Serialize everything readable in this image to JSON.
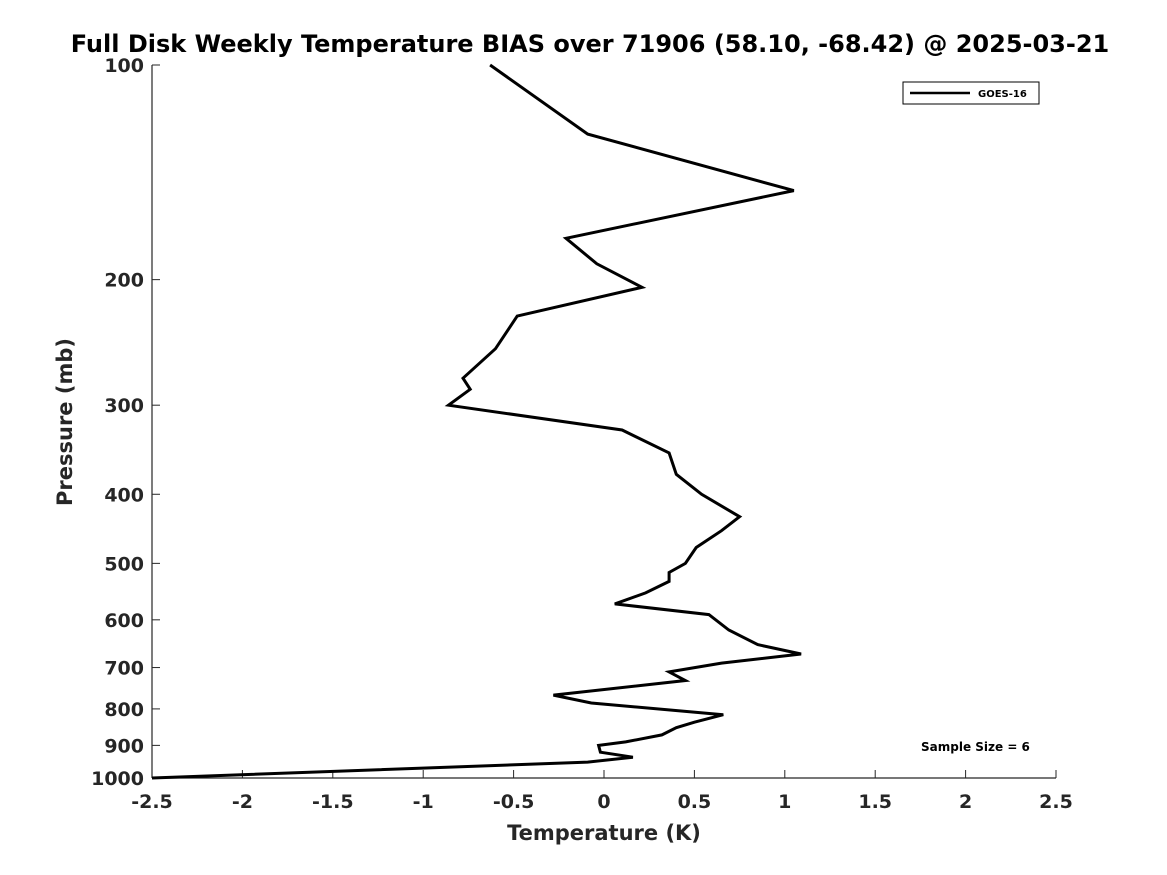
{
  "chart_data": {
    "type": "line",
    "title": "Full Disk Weekly Temperature BIAS over 71906 (58.10, -68.42) @ 2025-03-21",
    "xlabel": "Temperature (K)",
    "ylabel": "Pressure (mb)",
    "xlim": [
      -2.5,
      2.5
    ],
    "ylim": [
      100,
      1000
    ],
    "yscale": "log",
    "yreversed": true,
    "grid": false,
    "legend_position": "top-right",
    "x_ticks": [
      -2.5,
      -2,
      -1.5,
      -1,
      -0.5,
      0,
      0.5,
      1,
      1.5,
      2,
      2.5
    ],
    "x_tick_labels": [
      "-2.5",
      "-2",
      "-1.5",
      "-1",
      "-0.5",
      "0",
      "0.5",
      "1",
      "1.5",
      "2",
      "2.5"
    ],
    "y_ticks": [
      100,
      200,
      300,
      400,
      500,
      600,
      700,
      800,
      900,
      1000
    ],
    "y_tick_labels": [
      "100",
      "200",
      "300",
      "400",
      "500",
      "600",
      "700",
      "800",
      "900",
      "1000"
    ],
    "series": [
      {
        "name": "GOES-16",
        "color": "#000000",
        "points": [
          [
            -0.63,
            100
          ],
          [
            -0.09,
            125
          ],
          [
            1.05,
            150
          ],
          [
            -0.21,
            175
          ],
          [
            -0.04,
            190
          ],
          [
            0.21,
            205
          ],
          [
            -0.48,
            225
          ],
          [
            -0.6,
            250
          ],
          [
            -0.78,
            275
          ],
          [
            -0.74,
            285
          ],
          [
            -0.86,
            300
          ],
          [
            0.1,
            325
          ],
          [
            0.36,
            350
          ],
          [
            0.4,
            375
          ],
          [
            0.54,
            400
          ],
          [
            0.75,
            430
          ],
          [
            0.65,
            450
          ],
          [
            0.51,
            475
          ],
          [
            0.45,
            500
          ],
          [
            0.36,
            515
          ],
          [
            0.36,
            530
          ],
          [
            0.23,
            550
          ],
          [
            0.06,
            570
          ],
          [
            0.58,
            590
          ],
          [
            0.69,
            620
          ],
          [
            0.85,
            650
          ],
          [
            1.09,
            670
          ],
          [
            0.65,
            690
          ],
          [
            0.36,
            710
          ],
          [
            0.45,
            730
          ],
          [
            -0.28,
            765
          ],
          [
            -0.07,
            785
          ],
          [
            0.66,
            815
          ],
          [
            0.5,
            835
          ],
          [
            0.4,
            850
          ],
          [
            0.32,
            870
          ],
          [
            0.12,
            890
          ],
          [
            -0.03,
            900
          ],
          [
            -0.02,
            920
          ],
          [
            0.16,
            935
          ],
          [
            -0.09,
            950
          ],
          [
            -2.5,
            1000
          ]
        ]
      }
    ],
    "annotations": [
      "Sample Size = 6"
    ]
  }
}
